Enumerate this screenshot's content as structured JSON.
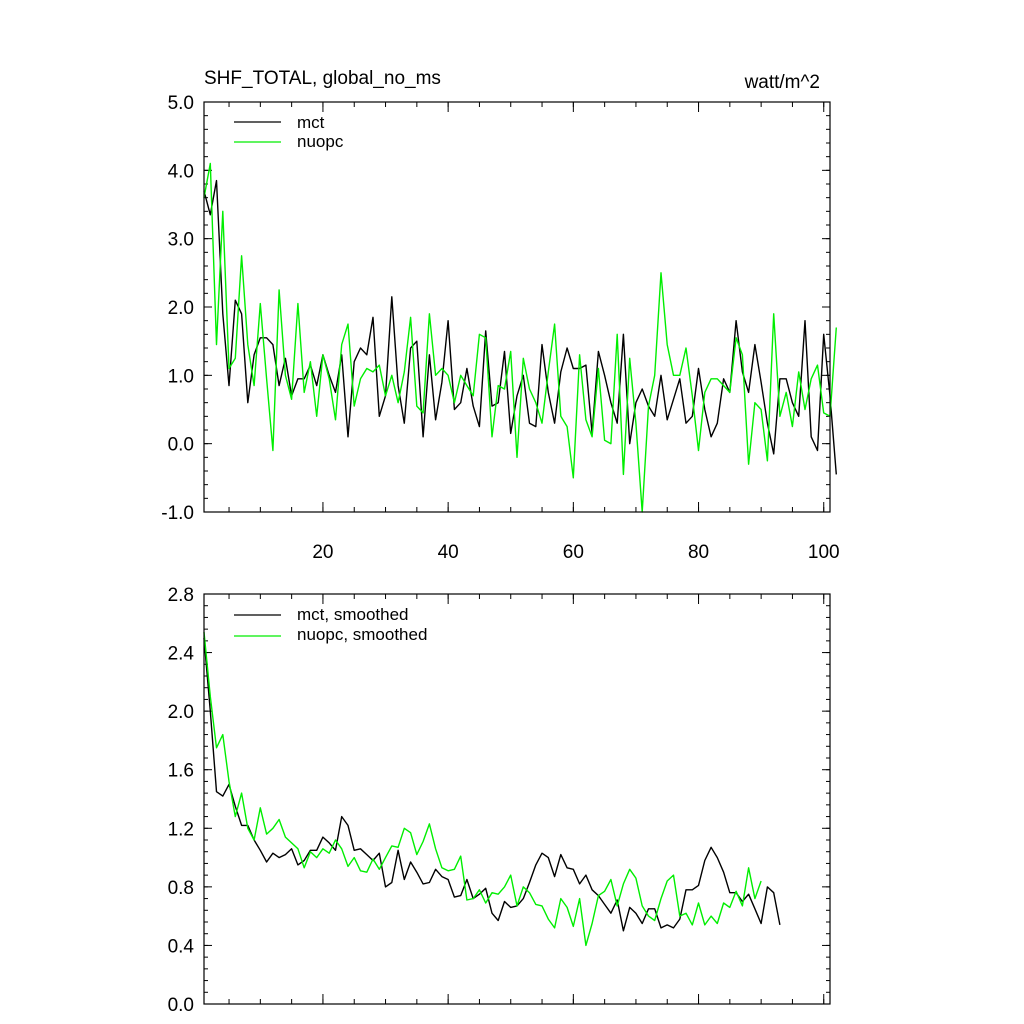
{
  "chart_data": [
    {
      "type": "line",
      "title": "SHF_TOTAL, global_no_ms",
      "units": "watt/m^2",
      "xlim": [
        1,
        101
      ],
      "ylim": [
        -1.0,
        5.0
      ],
      "x_ticks": [
        20,
        40,
        60,
        80,
        100
      ],
      "y_ticks": [
        "-1.0",
        "0.0",
        "1.0",
        "2.0",
        "3.0",
        "4.0",
        "5.0"
      ],
      "legend": "top-left",
      "series": [
        {
          "name": "mct",
          "color": "#000000",
          "values": [
            3.7,
            3.35,
            3.85,
            1.9,
            0.85,
            2.1,
            1.9,
            0.6,
            1.3,
            1.55,
            1.55,
            1.45,
            0.85,
            1.25,
            0.7,
            0.95,
            0.95,
            1.15,
            0.85,
            1.3,
            1.0,
            0.75,
            1.3,
            0.1,
            1.2,
            1.4,
            1.3,
            1.85,
            0.4,
            0.7,
            2.15,
            0.85,
            0.3,
            1.4,
            1.5,
            0.1,
            1.3,
            0.35,
            0.9,
            1.8,
            0.5,
            0.6,
            1.1,
            0.55,
            0.25,
            1.65,
            0.55,
            0.6,
            1.35,
            0.15,
            0.7,
            1.0,
            0.3,
            0.25,
            1.45,
            0.75,
            0.3,
            1.05,
            1.4,
            1.1,
            1.1,
            1.15,
            0.15,
            1.35,
            1.0,
            0.6,
            0.3,
            1.6,
            0.0,
            0.6,
            0.8,
            0.55,
            0.4,
            1.0,
            0.35,
            0.65,
            0.95,
            0.3,
            0.4,
            1.1,
            0.5,
            0.1,
            0.3,
            0.95,
            0.75,
            1.8,
            1.05,
            0.75,
            1.45,
            0.9,
            0.3,
            -0.15,
            0.95,
            0.95,
            0.6,
            0.4,
            1.8,
            0.1,
            -0.1,
            1.6,
            0.7,
            -0.45
          ]
        },
        {
          "name": "nuopc",
          "color": "#00ee00",
          "values": [
            3.6,
            4.1,
            1.45,
            3.4,
            1.1,
            1.25,
            2.75,
            1.45,
            0.85,
            2.05,
            0.95,
            -0.1,
            2.25,
            1.0,
            0.65,
            2.05,
            0.75,
            1.2,
            0.4,
            1.3,
            0.95,
            0.35,
            1.45,
            1.75,
            0.55,
            0.95,
            1.1,
            1.05,
            1.15,
            0.7,
            1.0,
            0.6,
            1.05,
            1.85,
            0.55,
            0.45,
            1.9,
            1.0,
            1.1,
            1.0,
            0.6,
            1.0,
            0.85,
            0.7,
            1.6,
            1.55,
            0.1,
            0.85,
            0.8,
            1.35,
            -0.2,
            1.25,
            0.8,
            0.6,
            0.3,
            1.05,
            1.75,
            0.4,
            0.25,
            -0.5,
            1.3,
            0.35,
            0.1,
            1.1,
            0.05,
            0.0,
            1.6,
            -0.45,
            1.25,
            0.3,
            -1.0,
            0.55,
            1.0,
            2.5,
            1.45,
            1.0,
            1.0,
            1.4,
            0.7,
            -0.1,
            0.75,
            0.95,
            0.95,
            0.85,
            0.75,
            1.55,
            1.3,
            -0.3,
            0.6,
            0.5,
            -0.25,
            1.9,
            0.4,
            0.75,
            0.25,
            1.05,
            0.5,
            0.95,
            1.15,
            0.45,
            0.4,
            1.7
          ]
        }
      ]
    },
    {
      "type": "line",
      "xlim": [
        1,
        101
      ],
      "ylim": [
        0.0,
        2.8
      ],
      "y_ticks": [
        "0.0",
        "0.4",
        "0.8",
        "1.2",
        "1.6",
        "2.0",
        "2.4",
        "2.8"
      ],
      "legend": "top-left",
      "series": [
        {
          "name": "mct, smoothed",
          "color": "#000000",
          "values": [
            2.5,
            2.0,
            1.45,
            1.42,
            1.5,
            1.35,
            1.22,
            1.22,
            1.12,
            1.05,
            0.97,
            1.03,
            1.0,
            1.02,
            1.06,
            0.95,
            0.98,
            1.05,
            1.05,
            1.14,
            1.1,
            1.05,
            1.28,
            1.22,
            1.05,
            1.06,
            1.02,
            0.98,
            1.03,
            0.8,
            0.83,
            1.05,
            0.85,
            0.97,
            0.9,
            0.82,
            0.83,
            0.92,
            0.87,
            0.85,
            0.73,
            0.74,
            0.85,
            0.72,
            0.75,
            0.79,
            0.62,
            0.57,
            0.7,
            0.66,
            0.67,
            0.72,
            0.83,
            0.95,
            1.03,
            1.0,
            0.87,
            1.02,
            0.93,
            0.92,
            0.82,
            0.88,
            0.78,
            0.74,
            0.68,
            0.62,
            0.71,
            0.5,
            0.66,
            0.62,
            0.55,
            0.65,
            0.65,
            0.52,
            0.54,
            0.52,
            0.58,
            0.78,
            0.78,
            0.81,
            0.98,
            1.07,
            1.0,
            0.9,
            0.76,
            0.76,
            0.7,
            0.75,
            0.65,
            0.55,
            0.8,
            0.76,
            0.54
          ]
        },
        {
          "name": "nuopc, smoothed",
          "color": "#00ee00",
          "values": [
            2.54,
            2.1,
            1.75,
            1.84,
            1.52,
            1.28,
            1.44,
            1.2,
            1.12,
            1.34,
            1.16,
            1.2,
            1.26,
            1.14,
            1.1,
            1.06,
            0.93,
            1.04,
            1.0,
            1.06,
            1.03,
            1.12,
            1.06,
            0.94,
            1.0,
            0.91,
            0.9,
            0.99,
            0.92,
            1.0,
            1.08,
            1.07,
            1.2,
            1.17,
            1.02,
            1.11,
            1.23,
            1.06,
            0.93,
            0.91,
            0.92,
            1.01,
            0.71,
            0.72,
            0.78,
            0.69,
            0.76,
            0.75,
            0.8,
            0.88,
            0.67,
            0.8,
            0.76,
            0.68,
            0.67,
            0.58,
            0.52,
            0.72,
            0.66,
            0.53,
            0.72,
            0.4,
            0.55,
            0.74,
            0.77,
            0.85,
            0.67,
            0.82,
            0.92,
            0.86,
            0.67,
            0.6,
            0.57,
            0.72,
            0.84,
            0.88,
            0.6,
            0.62,
            0.54,
            0.69,
            0.54,
            0.6,
            0.55,
            0.69,
            0.66,
            0.77,
            0.67,
            0.93,
            0.72,
            0.84
          ]
        }
      ]
    }
  ]
}
